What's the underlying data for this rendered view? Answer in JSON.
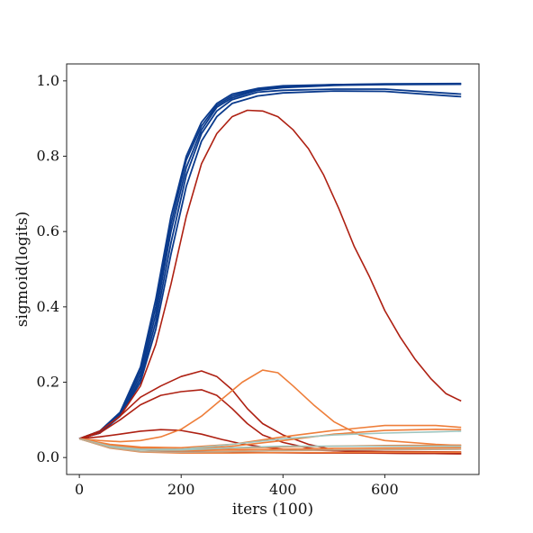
{
  "chart_data": {
    "type": "line",
    "title": "",
    "xlabel": "iters (100)",
    "ylabel": "sigmoid(logits)",
    "xlim": [
      -25,
      785
    ],
    "ylim": [
      -0.045,
      1.045
    ],
    "xticks": [
      0,
      200,
      400,
      600
    ],
    "xtick_labels": [
      "0",
      "200",
      "400",
      "600"
    ],
    "yticks": [
      0.0,
      0.2,
      0.4,
      0.6,
      0.8,
      1.0
    ],
    "ytick_labels": [
      "0.0",
      "0.2",
      "0.4",
      "0.6",
      "0.8",
      "1.0"
    ],
    "grid": false,
    "legend": "none",
    "series": [
      {
        "color": "#0a3a8c",
        "x": [
          0,
          40,
          80,
          120,
          150,
          180,
          210,
          240,
          270,
          300,
          350,
          400,
          500,
          600,
          750
        ],
        "y": [
          0.05,
          0.07,
          0.12,
          0.24,
          0.42,
          0.64,
          0.8,
          0.89,
          0.94,
          0.965,
          0.98,
          0.987,
          0.99,
          0.992,
          0.993
        ]
      },
      {
        "color": "#0a3a8c",
        "x": [
          0,
          40,
          80,
          120,
          150,
          180,
          210,
          240,
          270,
          300,
          350,
          400,
          500,
          600,
          750
        ],
        "y": [
          0.05,
          0.07,
          0.12,
          0.23,
          0.4,
          0.62,
          0.79,
          0.88,
          0.935,
          0.96,
          0.978,
          0.985,
          0.99,
          0.991,
          0.992
        ]
      },
      {
        "color": "#0a3a8c",
        "x": [
          0,
          40,
          80,
          120,
          150,
          180,
          210,
          240,
          270,
          300,
          350,
          400,
          500,
          600,
          750
        ],
        "y": [
          0.05,
          0.065,
          0.11,
          0.21,
          0.36,
          0.57,
          0.75,
          0.86,
          0.92,
          0.95,
          0.97,
          0.975,
          0.978,
          0.978,
          0.965
        ]
      },
      {
        "color": "#0a3a8c",
        "x": [
          0,
          40,
          80,
          120,
          150,
          180,
          210,
          240,
          270,
          300,
          350,
          400,
          500,
          600,
          750
        ],
        "y": [
          0.05,
          0.065,
          0.11,
          0.2,
          0.34,
          0.54,
          0.72,
          0.84,
          0.905,
          0.94,
          0.96,
          0.968,
          0.973,
          0.972,
          0.958
        ]
      },
      {
        "color": "#0a3a8c",
        "x": [
          0,
          40,
          80,
          120,
          150,
          180,
          210,
          240,
          270,
          300,
          350,
          400,
          500,
          600,
          750
        ],
        "y": [
          0.05,
          0.068,
          0.115,
          0.22,
          0.38,
          0.6,
          0.77,
          0.87,
          0.93,
          0.955,
          0.975,
          0.982,
          0.988,
          0.99,
          0.991
        ]
      },
      {
        "color": "#ae2012",
        "x": [
          0,
          40,
          80,
          120,
          150,
          180,
          210,
          240,
          270,
          300,
          330,
          360,
          390,
          420,
          450,
          480,
          510,
          540,
          570,
          600,
          630,
          660,
          690,
          720,
          750
        ],
        "y": [
          0.05,
          0.07,
          0.11,
          0.19,
          0.3,
          0.46,
          0.64,
          0.78,
          0.86,
          0.905,
          0.922,
          0.92,
          0.905,
          0.87,
          0.82,
          0.75,
          0.66,
          0.56,
          0.48,
          0.39,
          0.32,
          0.26,
          0.21,
          0.17,
          0.15
        ]
      },
      {
        "color": "#ae2012",
        "x": [
          0,
          40,
          80,
          120,
          160,
          200,
          240,
          270,
          300,
          330,
          360,
          400,
          450,
          500,
          600,
          750
        ],
        "y": [
          0.05,
          0.07,
          0.11,
          0.16,
          0.19,
          0.215,
          0.23,
          0.215,
          0.18,
          0.13,
          0.09,
          0.06,
          0.035,
          0.02,
          0.012,
          0.01
        ]
      },
      {
        "color": "#ae2012",
        "x": [
          0,
          40,
          80,
          120,
          160,
          200,
          240,
          270,
          300,
          330,
          360,
          400,
          450,
          500,
          600,
          750
        ],
        "y": [
          0.05,
          0.065,
          0.1,
          0.14,
          0.165,
          0.175,
          0.18,
          0.165,
          0.13,
          0.09,
          0.06,
          0.04,
          0.025,
          0.018,
          0.012,
          0.01
        ]
      },
      {
        "color": "#ae2012",
        "x": [
          0,
          40,
          80,
          120,
          160,
          200,
          240,
          280,
          320,
          360,
          400,
          500,
          600,
          750
        ],
        "y": [
          0.05,
          0.055,
          0.062,
          0.07,
          0.074,
          0.072,
          0.062,
          0.048,
          0.036,
          0.028,
          0.022,
          0.018,
          0.016,
          0.015
        ]
      },
      {
        "color": "#ae2012",
        "x": [
          0,
          40,
          80,
          150,
          250,
          350,
          450,
          550,
          650,
          750
        ],
        "y": [
          0.05,
          0.035,
          0.025,
          0.018,
          0.015,
          0.013,
          0.012,
          0.012,
          0.011,
          0.011
        ]
      },
      {
        "color": "#ee7e3a",
        "x": [
          0,
          40,
          80,
          120,
          160,
          200,
          240,
          280,
          320,
          360,
          390,
          420,
          460,
          500,
          550,
          600,
          700,
          750
        ],
        "y": [
          0.05,
          0.045,
          0.042,
          0.045,
          0.055,
          0.075,
          0.11,
          0.155,
          0.2,
          0.232,
          0.225,
          0.19,
          0.14,
          0.095,
          0.06,
          0.045,
          0.035,
          0.032
        ]
      },
      {
        "color": "#ee7e3a",
        "x": [
          0,
          60,
          120,
          200,
          300,
          400,
          500,
          600,
          700,
          750
        ],
        "y": [
          0.05,
          0.035,
          0.028,
          0.026,
          0.035,
          0.055,
          0.072,
          0.085,
          0.085,
          0.08
        ]
      },
      {
        "color": "#ee7e3a",
        "x": [
          0,
          60,
          120,
          200,
          300,
          400,
          500,
          600,
          700,
          750
        ],
        "y": [
          0.05,
          0.032,
          0.025,
          0.022,
          0.03,
          0.045,
          0.062,
          0.072,
          0.075,
          0.074
        ]
      },
      {
        "color": "#ee7e3a",
        "x": [
          0,
          60,
          120,
          200,
          300,
          400,
          500,
          600,
          750
        ],
        "y": [
          0.05,
          0.03,
          0.022,
          0.02,
          0.024,
          0.028,
          0.03,
          0.032,
          0.033
        ]
      },
      {
        "color": "#ee7e3a",
        "x": [
          0,
          60,
          120,
          200,
          300,
          400,
          500,
          600,
          750
        ],
        "y": [
          0.05,
          0.028,
          0.02,
          0.018,
          0.02,
          0.022,
          0.024,
          0.025,
          0.026
        ]
      },
      {
        "color": "#ee7e3a",
        "x": [
          0,
          60,
          120,
          200,
          300,
          400,
          500,
          600,
          750
        ],
        "y": [
          0.05,
          0.025,
          0.015,
          0.012,
          0.012,
          0.013,
          0.013,
          0.014,
          0.014
        ]
      },
      {
        "color": "#9fc5bf",
        "x": [
          0,
          60,
          120,
          200,
          300,
          400,
          500,
          600,
          700,
          750
        ],
        "y": [
          0.05,
          0.03,
          0.022,
          0.022,
          0.035,
          0.05,
          0.06,
          0.065,
          0.068,
          0.07
        ]
      },
      {
        "color": "#9fc5bf",
        "x": [
          0,
          60,
          120,
          200,
          300,
          400,
          500,
          600,
          750
        ],
        "y": [
          0.05,
          0.028,
          0.02,
          0.02,
          0.026,
          0.03,
          0.03,
          0.03,
          0.03
        ]
      },
      {
        "color": "#c2a88a",
        "x": [
          0,
          60,
          120,
          200,
          300,
          400,
          500,
          600,
          750
        ],
        "y": [
          0.05,
          0.026,
          0.016,
          0.014,
          0.016,
          0.018,
          0.02,
          0.021,
          0.022
        ]
      }
    ]
  }
}
